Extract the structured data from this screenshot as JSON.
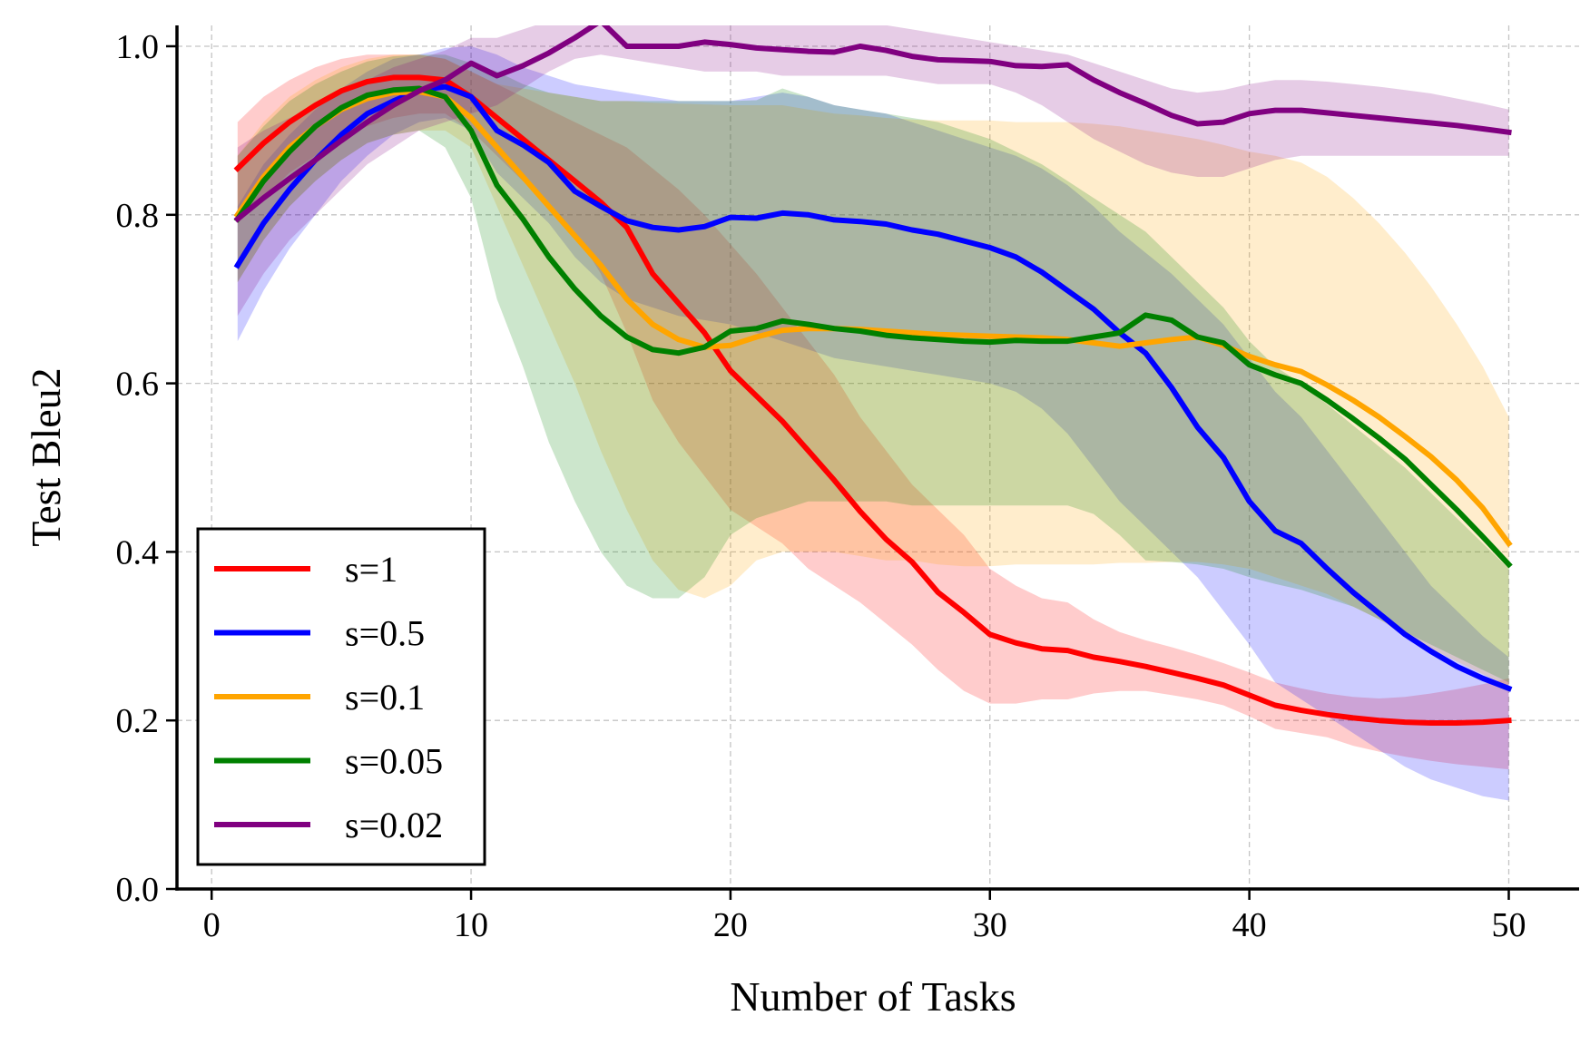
{
  "chart_data": {
    "type": "line",
    "title": "",
    "xlabel": "Number of Tasks",
    "ylabel": "Test Bleu2",
    "xlim": [
      -1.5,
      52.5
    ],
    "ylim": [
      0.0,
      1.03
    ],
    "xticks": [
      0,
      10,
      20,
      30,
      40,
      50
    ],
    "xtick_labels": [
      "0",
      "10",
      "20",
      "30",
      "40",
      "50"
    ],
    "yticks": [
      0.0,
      0.2,
      0.4,
      0.6,
      0.8,
      1.0
    ],
    "ytick_labels": [
      "0.0",
      "0.2",
      "0.4",
      "0.6",
      "0.8",
      "1.0"
    ],
    "grid": true,
    "legend_position": "lower-left",
    "x": [
      1,
      2,
      3,
      4,
      5,
      6,
      7,
      8,
      9,
      10,
      11,
      12,
      13,
      14,
      15,
      16,
      17,
      18,
      19,
      20,
      21,
      22,
      23,
      24,
      25,
      26,
      27,
      28,
      29,
      30,
      31,
      32,
      33,
      34,
      35,
      36,
      37,
      38,
      39,
      40,
      41,
      42,
      43,
      44,
      45,
      46,
      47,
      48,
      49,
      50
    ],
    "series": [
      {
        "name": "s=1",
        "color": "#ff0000",
        "values": [
          0.855,
          0.885,
          0.91,
          0.93,
          0.947,
          0.958,
          0.963,
          0.963,
          0.96,
          0.94,
          0.915,
          0.89,
          0.865,
          0.84,
          0.815,
          0.785,
          0.73,
          0.695,
          0.66,
          0.615,
          0.585,
          0.555,
          0.52,
          0.485,
          0.448,
          0.415,
          0.388,
          0.352,
          0.328,
          0.302,
          0.292,
          0.285,
          0.283,
          0.275,
          0.27,
          0.264,
          0.257,
          0.25,
          0.242,
          0.23,
          0.218,
          0.212,
          0.207,
          0.203,
          0.2,
          0.198,
          0.197,
          0.197,
          0.198,
          0.2
        ],
        "lower": [
          0.79,
          0.82,
          0.85,
          0.87,
          0.89,
          0.905,
          0.915,
          0.92,
          0.92,
          0.9,
          0.87,
          0.84,
          0.81,
          0.78,
          0.73,
          0.66,
          0.58,
          0.53,
          0.49,
          0.45,
          0.43,
          0.41,
          0.38,
          0.36,
          0.34,
          0.315,
          0.29,
          0.26,
          0.235,
          0.22,
          0.22,
          0.225,
          0.225,
          0.232,
          0.235,
          0.235,
          0.23,
          0.225,
          0.218,
          0.205,
          0.19,
          0.185,
          0.18,
          0.17,
          0.163,
          0.157,
          0.152,
          0.148,
          0.145,
          0.142
        ],
        "upper": [
          0.91,
          0.94,
          0.96,
          0.975,
          0.985,
          0.99,
          0.99,
          0.99,
          0.985,
          0.97,
          0.955,
          0.94,
          0.925,
          0.91,
          0.895,
          0.88,
          0.855,
          0.83,
          0.8,
          0.765,
          0.73,
          0.69,
          0.65,
          0.61,
          0.56,
          0.52,
          0.48,
          0.45,
          0.42,
          0.38,
          0.36,
          0.345,
          0.34,
          0.32,
          0.305,
          0.295,
          0.287,
          0.278,
          0.268,
          0.257,
          0.245,
          0.238,
          0.232,
          0.228,
          0.226,
          0.228,
          0.232,
          0.237,
          0.243,
          0.25
        ]
      },
      {
        "name": "s=0.5",
        "color": "#0000ff",
        "values": [
          0.74,
          0.79,
          0.83,
          0.865,
          0.895,
          0.92,
          0.935,
          0.948,
          0.952,
          0.94,
          0.9,
          0.883,
          0.862,
          0.828,
          0.81,
          0.793,
          0.785,
          0.782,
          0.786,
          0.797,
          0.796,
          0.802,
          0.8,
          0.794,
          0.792,
          0.789,
          0.782,
          0.777,
          0.769,
          0.761,
          0.75,
          0.732,
          0.71,
          0.688,
          0.66,
          0.636,
          0.595,
          0.548,
          0.512,
          0.46,
          0.425,
          0.41,
          0.38,
          0.352,
          0.327,
          0.302,
          0.282,
          0.264,
          0.25,
          0.238
        ],
        "lower": [
          0.65,
          0.71,
          0.76,
          0.8,
          0.84,
          0.87,
          0.895,
          0.91,
          0.915,
          0.9,
          0.85,
          0.82,
          0.79,
          0.75,
          0.72,
          0.7,
          0.69,
          0.68,
          0.675,
          0.67,
          0.66,
          0.65,
          0.64,
          0.63,
          0.625,
          0.62,
          0.615,
          0.61,
          0.605,
          0.6,
          0.59,
          0.57,
          0.54,
          0.5,
          0.46,
          0.43,
          0.4,
          0.37,
          0.33,
          0.29,
          0.245,
          0.225,
          0.205,
          0.185,
          0.165,
          0.145,
          0.13,
          0.12,
          0.11,
          0.105
        ],
        "upper": [
          0.81,
          0.86,
          0.895,
          0.925,
          0.95,
          0.97,
          0.985,
          0.99,
          0.998,
          1.0,
          0.99,
          0.975,
          0.965,
          0.955,
          0.95,
          0.945,
          0.94,
          0.935,
          0.935,
          0.935,
          0.94,
          0.945,
          0.94,
          0.93,
          0.925,
          0.92,
          0.91,
          0.9,
          0.89,
          0.88,
          0.87,
          0.855,
          0.835,
          0.81,
          0.78,
          0.755,
          0.73,
          0.7,
          0.67,
          0.63,
          0.59,
          0.56,
          0.52,
          0.48,
          0.44,
          0.4,
          0.36,
          0.33,
          0.3,
          0.275
        ]
      },
      {
        "name": "s=0.1",
        "color": "#ffa500",
        "values": [
          0.8,
          0.845,
          0.88,
          0.905,
          0.925,
          0.938,
          0.945,
          0.946,
          0.94,
          0.915,
          0.88,
          0.845,
          0.81,
          0.775,
          0.74,
          0.7,
          0.67,
          0.652,
          0.643,
          0.645,
          0.655,
          0.663,
          0.665,
          0.665,
          0.664,
          0.662,
          0.66,
          0.658,
          0.657,
          0.656,
          0.655,
          0.654,
          0.652,
          0.648,
          0.644,
          0.648,
          0.652,
          0.655,
          0.645,
          0.632,
          0.622,
          0.614,
          0.598,
          0.58,
          0.56,
          0.537,
          0.513,
          0.485,
          0.452,
          0.41
        ],
        "lower": [
          0.72,
          0.77,
          0.81,
          0.84,
          0.865,
          0.885,
          0.895,
          0.9,
          0.9,
          0.88,
          0.81,
          0.74,
          0.67,
          0.6,
          0.52,
          0.45,
          0.39,
          0.355,
          0.345,
          0.36,
          0.39,
          0.4,
          0.4,
          0.4,
          0.395,
          0.39,
          0.39,
          0.385,
          0.383,
          0.383,
          0.385,
          0.385,
          0.385,
          0.385,
          0.387,
          0.387,
          0.388,
          0.388,
          0.385,
          0.38,
          0.37,
          0.36,
          0.35,
          0.335,
          0.32,
          0.3,
          0.285,
          0.27,
          0.255,
          0.24
        ],
        "upper": [
          0.87,
          0.91,
          0.94,
          0.96,
          0.975,
          0.985,
          0.99,
          0.99,
          0.985,
          0.97,
          0.955,
          0.95,
          0.945,
          0.94,
          0.935,
          0.935,
          0.933,
          0.932,
          0.931,
          0.93,
          0.93,
          0.93,
          0.925,
          0.92,
          0.918,
          0.915,
          0.913,
          0.912,
          0.912,
          0.912,
          0.91,
          0.91,
          0.91,
          0.908,
          0.905,
          0.9,
          0.895,
          0.89,
          0.883,
          0.875,
          0.87,
          0.862,
          0.845,
          0.82,
          0.79,
          0.755,
          0.715,
          0.67,
          0.62,
          0.56
        ]
      },
      {
        "name": "s=0.05",
        "color": "#008000",
        "values": [
          0.795,
          0.84,
          0.875,
          0.905,
          0.927,
          0.942,
          0.948,
          0.95,
          0.94,
          0.9,
          0.835,
          0.795,
          0.75,
          0.712,
          0.68,
          0.655,
          0.64,
          0.636,
          0.643,
          0.662,
          0.665,
          0.674,
          0.67,
          0.665,
          0.662,
          0.657,
          0.654,
          0.652,
          0.65,
          0.649,
          0.651,
          0.65,
          0.65,
          0.655,
          0.66,
          0.681,
          0.675,
          0.655,
          0.648,
          0.622,
          0.61,
          0.6,
          0.58,
          0.558,
          0.535,
          0.51,
          0.48,
          0.45,
          0.418,
          0.385
        ],
        "lower": [
          0.72,
          0.77,
          0.81,
          0.84,
          0.865,
          0.885,
          0.895,
          0.9,
          0.88,
          0.82,
          0.7,
          0.62,
          0.53,
          0.46,
          0.4,
          0.36,
          0.345,
          0.345,
          0.37,
          0.42,
          0.44,
          0.45,
          0.46,
          0.46,
          0.46,
          0.46,
          0.455,
          0.455,
          0.455,
          0.455,
          0.455,
          0.455,
          0.455,
          0.445,
          0.42,
          0.39,
          0.388,
          0.385,
          0.38,
          0.37,
          0.362,
          0.355,
          0.345,
          0.335,
          0.32,
          0.305,
          0.29,
          0.275,
          0.26,
          0.245
        ],
        "upper": [
          0.87,
          0.905,
          0.935,
          0.955,
          0.97,
          0.982,
          0.988,
          0.99,
          0.99,
          0.98,
          0.97,
          0.955,
          0.945,
          0.94,
          0.935,
          0.935,
          0.935,
          0.935,
          0.935,
          0.935,
          0.936,
          0.95,
          0.94,
          0.93,
          0.925,
          0.92,
          0.915,
          0.91,
          0.9,
          0.89,
          0.875,
          0.86,
          0.84,
          0.82,
          0.8,
          0.78,
          0.75,
          0.72,
          0.69,
          0.65,
          0.62,
          0.6,
          0.575,
          0.55,
          0.525,
          0.5,
          0.47,
          0.44,
          0.41,
          0.38
        ]
      },
      {
        "name": "s=0.02",
        "color": "#800080",
        "values": [
          0.795,
          0.82,
          0.843,
          0.865,
          0.888,
          0.91,
          0.93,
          0.947,
          0.96,
          0.98,
          0.965,
          0.977,
          0.992,
          1.01,
          1.03,
          1.0,
          1.0,
          1.0,
          1.005,
          1.002,
          0.998,
          0.996,
          0.994,
          0.993,
          1.0,
          0.995,
          0.988,
          0.984,
          0.983,
          0.982,
          0.977,
          0.976,
          0.978,
          0.96,
          0.945,
          0.932,
          0.918,
          0.908,
          0.91,
          0.92,
          0.924,
          0.924,
          0.921,
          0.918,
          0.915,
          0.912,
          0.909,
          0.906,
          0.902,
          0.898
        ],
        "lower": [
          0.68,
          0.73,
          0.77,
          0.8,
          0.83,
          0.86,
          0.88,
          0.9,
          0.91,
          0.92,
          0.93,
          0.95,
          0.97,
          0.985,
          0.99,
          0.985,
          0.98,
          0.975,
          0.97,
          0.97,
          0.97,
          0.965,
          0.965,
          0.965,
          0.965,
          0.965,
          0.96,
          0.955,
          0.955,
          0.955,
          0.945,
          0.93,
          0.91,
          0.89,
          0.875,
          0.86,
          0.85,
          0.845,
          0.845,
          0.855,
          0.865,
          0.87,
          0.87,
          0.87,
          0.87,
          0.87,
          0.87,
          0.87,
          0.87,
          0.87
        ],
        "upper": [
          0.88,
          0.9,
          0.915,
          0.93,
          0.945,
          0.96,
          0.975,
          0.985,
          0.995,
          1.01,
          1.01,
          1.02,
          1.03,
          1.03,
          1.03,
          1.03,
          1.03,
          1.03,
          1.03,
          1.03,
          1.03,
          1.03,
          1.03,
          1.03,
          1.03,
          1.025,
          1.02,
          1.015,
          1.01,
          1.005,
          1.0,
          0.995,
          0.99,
          0.98,
          0.97,
          0.96,
          0.95,
          0.945,
          0.948,
          0.955,
          0.96,
          0.96,
          0.958,
          0.955,
          0.952,
          0.948,
          0.944,
          0.938,
          0.932,
          0.925
        ]
      }
    ]
  }
}
